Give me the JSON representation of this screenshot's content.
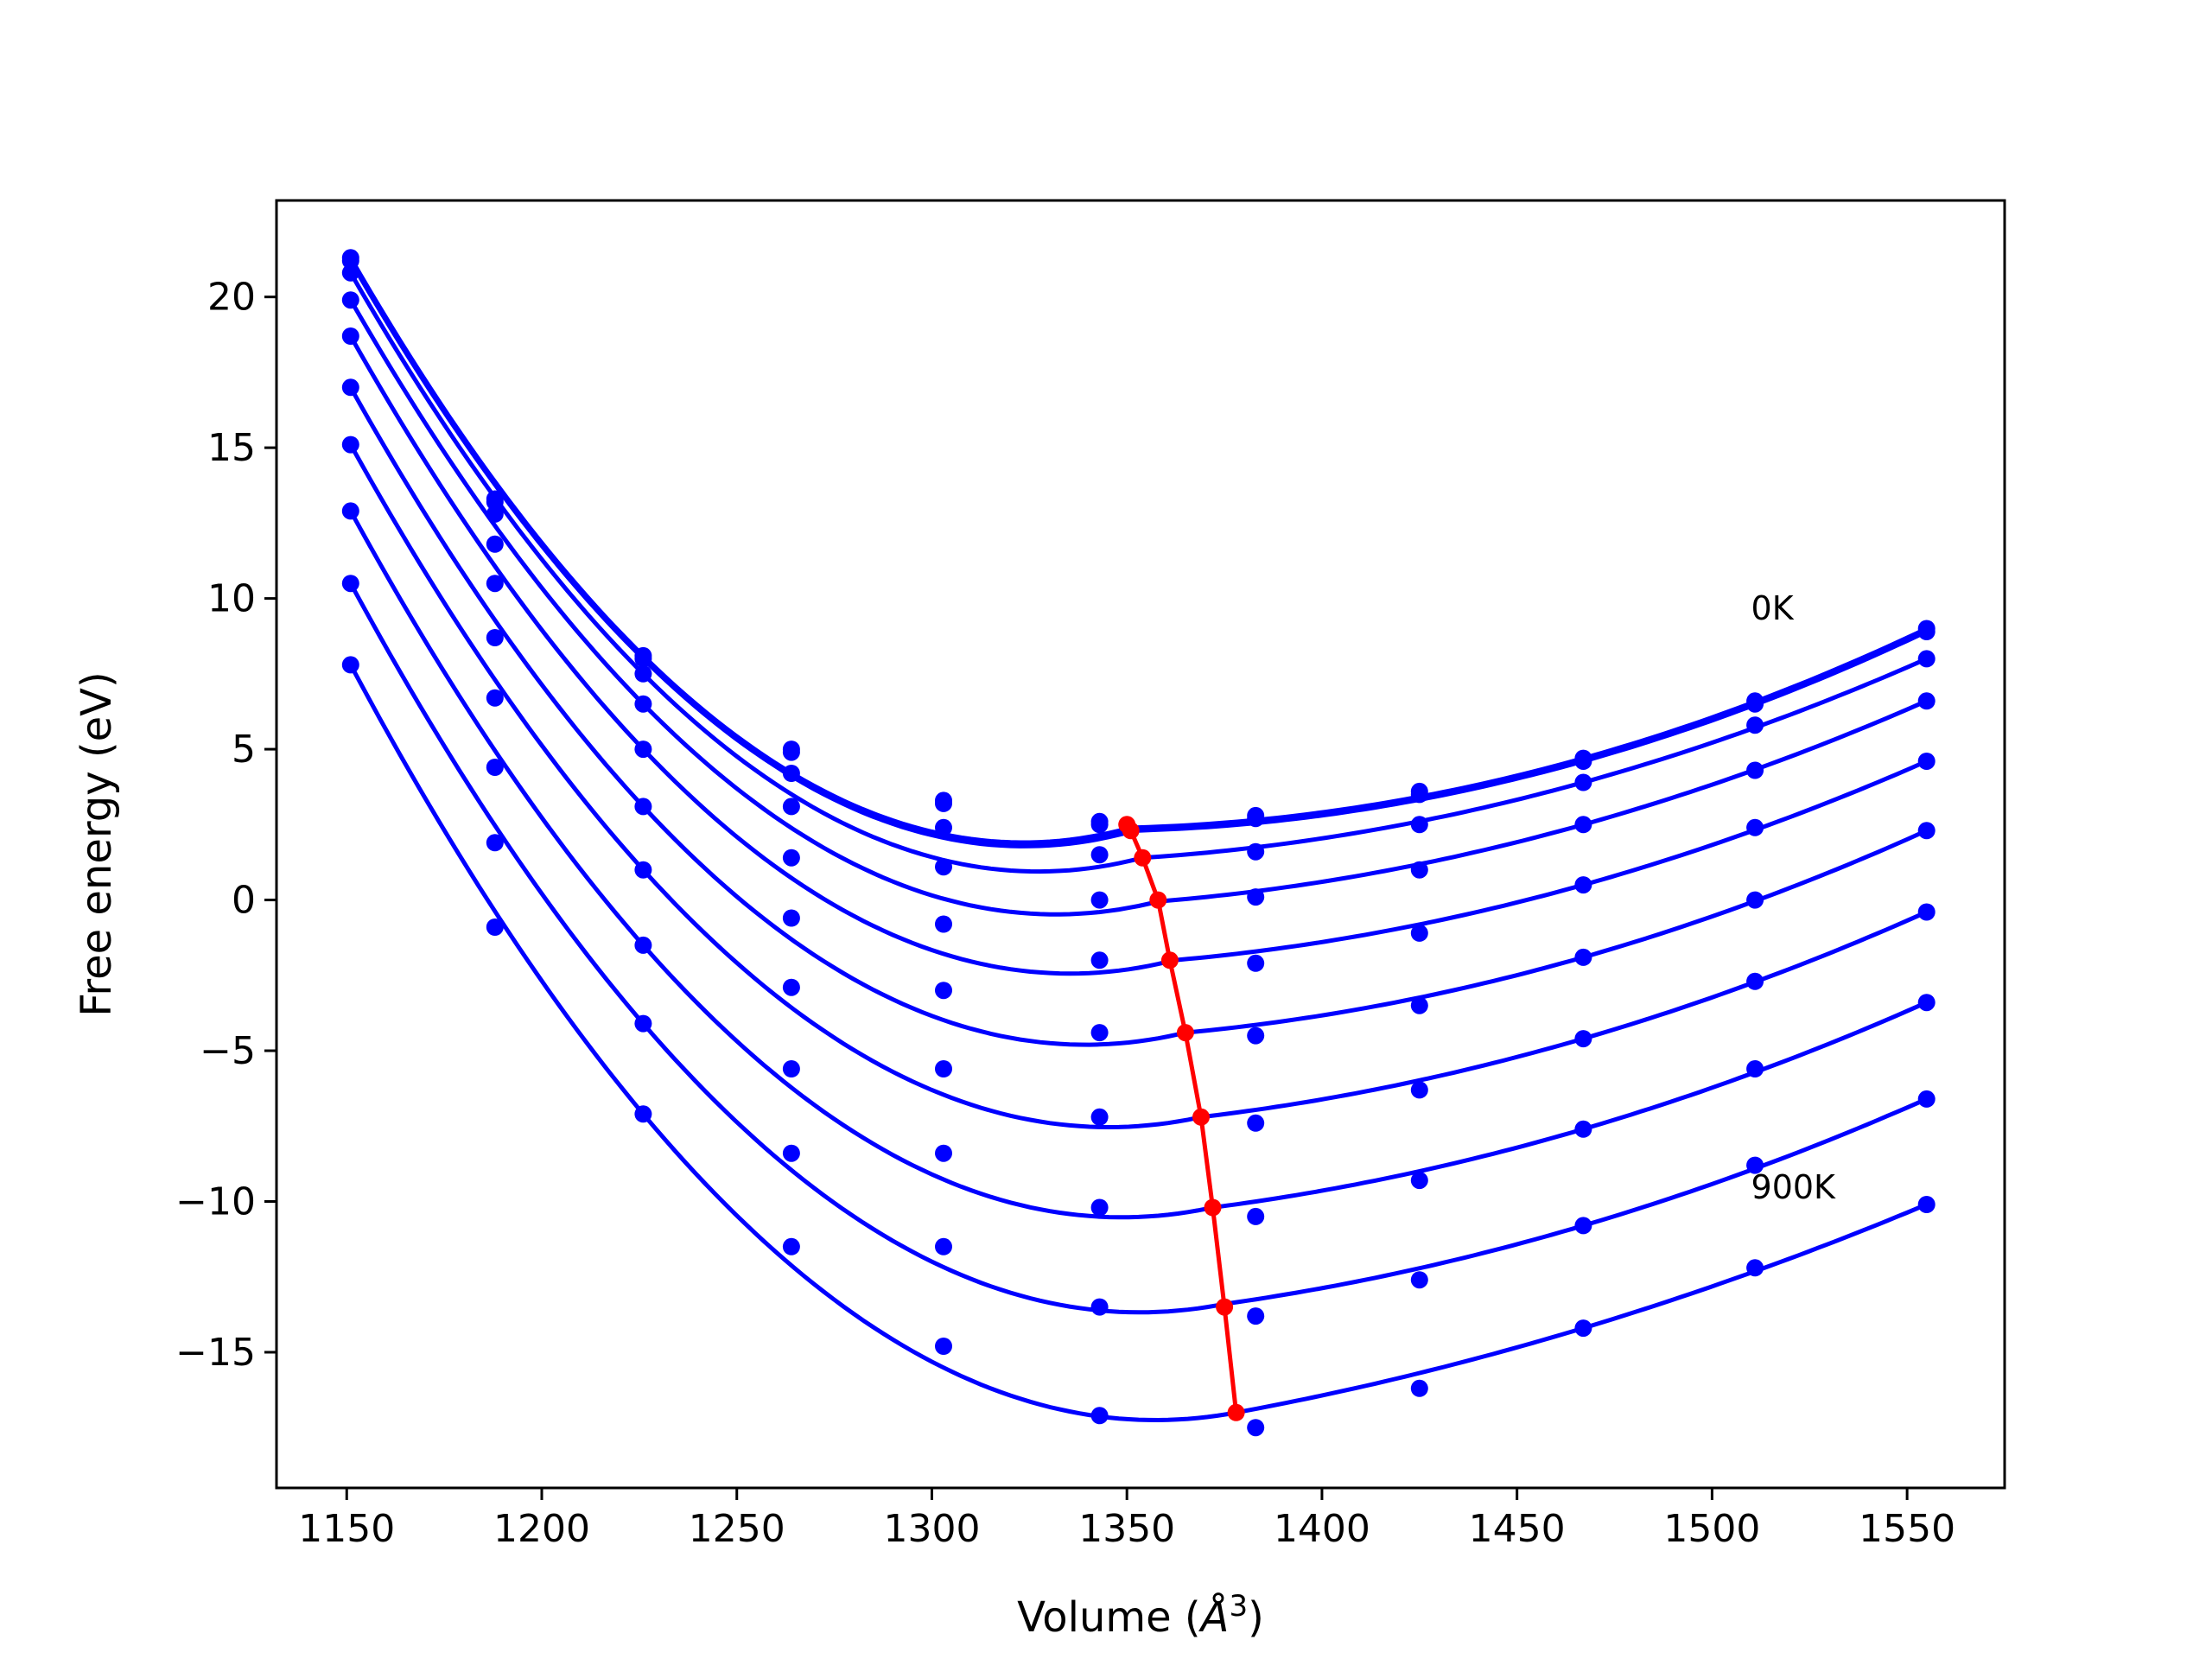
{
  "chart_data": {
    "type": "line",
    "title": "",
    "xlabel": "Volume (",
    "xlabel_unit": "Å",
    "xlabel_exp": "3",
    "xlabel_close": ")",
    "ylabel": "Free energy (eV)",
    "xlim": [
      1132,
      1575
    ],
    "ylim": [
      -19.5,
      23.2
    ],
    "xticks": [
      1150,
      1200,
      1250,
      1300,
      1350,
      1400,
      1450,
      1500,
      1550
    ],
    "yticks": [
      -15,
      -10,
      -5,
      0,
      5,
      10,
      15,
      20
    ],
    "xtick_labels": [
      "1150",
      "1200",
      "1250",
      "1300",
      "1350",
      "1400",
      "1450",
      "1500",
      "1550"
    ],
    "ytick_labels": [
      "−15",
      "−10",
      "−5",
      "0",
      "5",
      "10",
      "15",
      "20"
    ],
    "grid": false,
    "colors": {
      "fit": "#0000ff",
      "points": "#0000ff",
      "minima": "#ff0000"
    },
    "annotations": [
      {
        "text": "0K",
        "x": 1510,
        "y": 9.3
      },
      {
        "text": "900K",
        "x": 1510,
        "y": -9.9
      }
    ],
    "volumes": [
      1151,
      1188,
      1226,
      1264,
      1303,
      1343,
      1383,
      1425,
      1467,
      1511,
      1555
    ],
    "series": [
      {
        "values": [
          21.3,
          13.3,
          8.1,
          5.0,
          3.3,
          2.6,
          2.8,
          3.6,
          4.7,
          6.6,
          9.0
        ],
        "fit_min_x": 1351,
        "fit_min_y": 2.4
      },
      {
        "values": [
          21.2,
          13.2,
          8.0,
          4.9,
          3.2,
          2.5,
          2.7,
          3.5,
          4.6,
          6.5,
          8.9
        ],
        "fit_min_x": 1352,
        "fit_min_y": 2.3
      },
      {
        "values": [
          20.8,
          12.8,
          7.5,
          4.2,
          2.4,
          1.5,
          1.6,
          2.5,
          3.9,
          5.8,
          8.0
        ],
        "fit_min_x": 1354,
        "fit_min_y": 1.4
      },
      {
        "values": [
          19.9,
          11.8,
          6.5,
          3.1,
          1.1,
          0.0,
          0.1,
          1.0,
          2.5,
          4.3,
          6.6
        ],
        "fit_min_x": 1358,
        "fit_min_y": -0.05
      },
      {
        "values": [
          18.7,
          10.5,
          5.0,
          1.4,
          -0.8,
          -2.0,
          -2.1,
          -1.1,
          0.5,
          2.4,
          4.6
        ],
        "fit_min_x": 1362,
        "fit_min_y": -2.0
      },
      {
        "values": [
          17.0,
          8.7,
          3.1,
          -0.6,
          -3.0,
          -4.4,
          -4.5,
          -3.5,
          -1.9,
          0.0,
          2.3
        ],
        "fit_min_x": 1365,
        "fit_min_y": -4.4
      },
      {
        "values": [
          15.1,
          6.7,
          1.0,
          -2.9,
          -5.6,
          -7.2,
          -7.4,
          -6.3,
          -4.6,
          -2.7,
          -0.4
        ],
        "fit_min_x": 1369,
        "fit_min_y": -7.2
      },
      {
        "values": [
          12.9,
          4.4,
          -1.5,
          -5.6,
          -8.4,
          -10.2,
          -10.5,
          -9.3,
          -7.6,
          -5.6,
          -3.4
        ],
        "fit_min_x": 1372,
        "fit_min_y": -10.2
      },
      {
        "values": [
          10.5,
          1.9,
          -4.1,
          -8.4,
          -11.5,
          -13.5,
          -13.8,
          -12.6,
          -10.8,
          -8.8,
          -6.6
        ],
        "fit_min_x": 1375,
        "fit_min_y": -13.4
      },
      {
        "values": [
          7.8,
          -0.9,
          -7.1,
          -11.5,
          -14.8,
          -17.1,
          -17.5,
          -16.2,
          -14.2,
          -12.2,
          -10.1
        ],
        "fit_min_x": 1378,
        "fit_min_y": -17.0
      }
    ],
    "minima": {
      "x": [
        1350,
        1351,
        1354,
        1358,
        1361,
        1365,
        1369,
        1372,
        1375,
        1378
      ],
      "y": [
        2.5,
        2.3,
        1.4,
        0.0,
        -2.0,
        -4.4,
        -7.2,
        -10.2,
        -13.5,
        -17.0
      ]
    }
  }
}
